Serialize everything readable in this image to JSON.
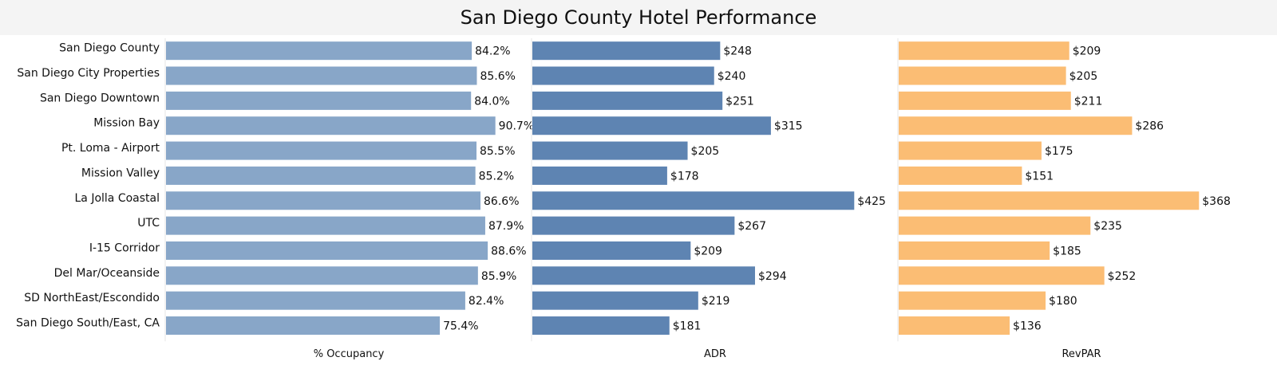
{
  "title": "San Diego County Hotel Performance",
  "chart_data": [
    {
      "type": "bar",
      "orientation": "horizontal",
      "title": "% Occupancy",
      "color": "#88a6c8",
      "xlim": [
        0,
        100
      ],
      "value_format": "percent",
      "categories": [
        "San Diego County",
        "San Diego City Properties",
        "San Diego Downtown",
        "Mission Bay",
        "Pt. Loma - Airport",
        "Mission Valley",
        "La Jolla Coastal",
        "UTC",
        "I-15 Corridor",
        "Del Mar/Oceanside",
        "SD NorthEast/Escondido",
        "San Diego South/East, CA"
      ],
      "values": [
        84.2,
        85.6,
        84.0,
        90.7,
        85.5,
        85.2,
        86.6,
        87.9,
        88.6,
        85.9,
        82.4,
        75.4
      ],
      "labels": [
        "84.2%",
        "85.6%",
        "84.0%",
        "90.7%",
        "85.5%",
        "85.2%",
        "86.6%",
        "87.9%",
        "88.6%",
        "85.9%",
        "82.4%",
        "75.4%"
      ]
    },
    {
      "type": "bar",
      "orientation": "horizontal",
      "title": "ADR",
      "color": "#5e84b2",
      "xlim": [
        0,
        470
      ],
      "value_format": "currency",
      "categories": [
        "San Diego County",
        "San Diego City Properties",
        "San Diego Downtown",
        "Mission Bay",
        "Pt. Loma - Airport",
        "Mission Valley",
        "La Jolla Coastal",
        "UTC",
        "I-15 Corridor",
        "Del Mar/Oceanside",
        "SD NorthEast/Escondido",
        "San Diego South/East, CA"
      ],
      "values": [
        248,
        240,
        251,
        315,
        205,
        178,
        425,
        267,
        209,
        294,
        219,
        181
      ],
      "labels": [
        "$248",
        "$240",
        "$251",
        "$315",
        "$205",
        "$178",
        "$425",
        "$267",
        "$209",
        "$294",
        "$219",
        "$181"
      ]
    },
    {
      "type": "bar",
      "orientation": "horizontal",
      "title": "RevPAR",
      "color": "#fbbd74",
      "xlim": [
        0,
        400
      ],
      "value_format": "currency",
      "categories": [
        "San Diego County",
        "San Diego City Properties",
        "San Diego Downtown",
        "Mission Bay",
        "Pt. Loma - Airport",
        "Mission Valley",
        "La Jolla Coastal",
        "UTC",
        "I-15 Corridor",
        "Del Mar/Oceanside",
        "SD NorthEast/Escondido",
        "San Diego South/East, CA"
      ],
      "values": [
        209,
        205,
        211,
        286,
        175,
        151,
        368,
        235,
        185,
        252,
        180,
        136
      ],
      "labels": [
        "$209",
        "$205",
        "$211",
        "$286",
        "$175",
        "$151",
        "$368",
        "$235",
        "$185",
        "$252",
        "$180",
        "$136"
      ]
    }
  ]
}
